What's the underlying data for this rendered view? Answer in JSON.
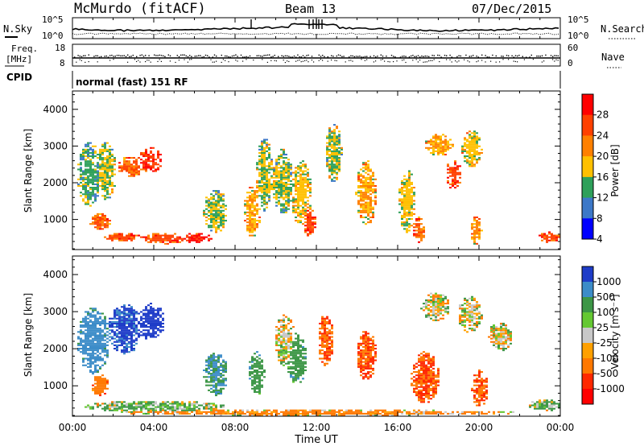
{
  "header": {
    "title": "McMurdo (fitACF)",
    "beam": "Beam 13",
    "date": "07/Dec/2015"
  },
  "noise_panel": {
    "left_label": "N.Sky",
    "right_label": "N.Search",
    "right_ticks": [
      "10^5",
      "10^0"
    ],
    "left_ticks": [
      "10^5",
      "10^0"
    ]
  },
  "freq_panel": {
    "left_label_line1": "Freq.",
    "left_label_line2": "[MHz]",
    "left_ticks": [
      "18",
      "8"
    ],
    "right_label": "Nave",
    "right_ticks": [
      "60",
      "0"
    ]
  },
  "cpid_panel": {
    "label": "CPID",
    "text": "normal (fast) 151 RF"
  },
  "power_panel": {
    "ylabel": "Slant Range [km]",
    "y_ticks": [
      "4000",
      "3000",
      "2000",
      "1000"
    ],
    "colorbar_label": "Power [dB]",
    "colorbar_ticks": [
      "28",
      "24",
      "20",
      "16",
      "12",
      "8",
      "4"
    ],
    "colors": [
      "#ff0000",
      "#ff4000",
      "#ff8000",
      "#ffc000",
      "#2ea05a",
      "#3c78c8",
      "#0000ff"
    ]
  },
  "velocity_panel": {
    "ylabel": "Slant Range [km]",
    "y_ticks": [
      "4000",
      "3000",
      "2000",
      "1000"
    ],
    "colorbar_label": "Velocity [m s⁻¹]",
    "colorbar_ticks": [
      "1000",
      "500",
      "100",
      "25",
      "-25",
      "-100",
      "-500",
      "-1000"
    ],
    "colors": [
      "#1e3cc8",
      "#3c8cc8",
      "#3c9646",
      "#64c832",
      "#c8c8c8",
      "#ffa000",
      "#ff7800",
      "#ff2800",
      "#ff0000"
    ]
  },
  "x_axis": {
    "ticks": [
      "00:00",
      "04:00",
      "08:00",
      "12:00",
      "16:00",
      "20:00",
      "00:00"
    ],
    "label": "Time UT"
  },
  "chart_data": [
    {
      "type": "heatmap",
      "name": "power",
      "x_range": [
        "00:00",
        "24:00"
      ],
      "ylim": [
        180,
        4500
      ],
      "y_ticks": [
        1000,
        2000,
        3000,
        4000
      ],
      "ylabel": "Slant Range [km]",
      "colorbar": {
        "label": "Power [dB]",
        "ticks": [
          4,
          8,
          12,
          16,
          20,
          24,
          28
        ]
      },
      "blobs": [
        {
          "t": 0.8,
          "r": 2200,
          "w": 0.6,
          "h": 900,
          "v": 12
        },
        {
          "t": 1.6,
          "r": 2300,
          "w": 0.5,
          "h": 800,
          "v": 14
        },
        {
          "t": 2.8,
          "r": 2400,
          "w": 0.6,
          "h": 300,
          "v": 22
        },
        {
          "t": 3.8,
          "r": 2600,
          "w": 0.6,
          "h": 350,
          "v": 26
        },
        {
          "t": 1.3,
          "r": 900,
          "w": 0.5,
          "h": 250,
          "v": 22
        },
        {
          "t": 2.4,
          "r": 500,
          "w": 0.9,
          "h": 120,
          "v": 24
        },
        {
          "t": 4.4,
          "r": 460,
          "w": 1.2,
          "h": 150,
          "v": 24
        },
        {
          "t": 6.0,
          "r": 480,
          "w": 0.9,
          "h": 130,
          "v": 26
        },
        {
          "t": 7.0,
          "r": 1200,
          "w": 0.6,
          "h": 600,
          "v": 14
        },
        {
          "t": 8.8,
          "r": 1200,
          "w": 0.4,
          "h": 700,
          "v": 18
        },
        {
          "t": 9.4,
          "r": 2200,
          "w": 0.4,
          "h": 1000,
          "v": 14
        },
        {
          "t": 10.3,
          "r": 2000,
          "w": 0.5,
          "h": 900,
          "v": 14
        },
        {
          "t": 11.2,
          "r": 1700,
          "w": 0.5,
          "h": 900,
          "v": 16
        },
        {
          "t": 11.6,
          "r": 900,
          "w": 0.3,
          "h": 400,
          "v": 24
        },
        {
          "t": 12.8,
          "r": 2800,
          "w": 0.4,
          "h": 800,
          "v": 14
        },
        {
          "t": 14.4,
          "r": 1700,
          "w": 0.5,
          "h": 900,
          "v": 18
        },
        {
          "t": 16.4,
          "r": 1500,
          "w": 0.4,
          "h": 900,
          "v": 16
        },
        {
          "t": 17.0,
          "r": 700,
          "w": 0.3,
          "h": 350,
          "v": 22
        },
        {
          "t": 18.0,
          "r": 3000,
          "w": 0.7,
          "h": 300,
          "v": 18
        },
        {
          "t": 18.7,
          "r": 2200,
          "w": 0.4,
          "h": 400,
          "v": 24
        },
        {
          "t": 19.6,
          "r": 2900,
          "w": 0.5,
          "h": 500,
          "v": 16
        },
        {
          "t": 19.8,
          "r": 700,
          "w": 0.3,
          "h": 400,
          "v": 20
        },
        {
          "t": 23.4,
          "r": 500,
          "w": 0.5,
          "h": 150,
          "v": 24
        }
      ]
    },
    {
      "type": "heatmap",
      "name": "velocity",
      "x_range": [
        "00:00",
        "24:00"
      ],
      "ylim": [
        180,
        4500
      ],
      "y_ticks": [
        1000,
        2000,
        3000,
        4000
      ],
      "ylabel": "Slant Range [km]",
      "colorbar": {
        "label": "Velocity [m s⁻¹]",
        "ticks": [
          -1000,
          -500,
          -100,
          -25,
          25,
          100,
          500,
          1000
        ]
      },
      "blobs": [
        {
          "t": 1.0,
          "r": 2200,
          "w": 0.8,
          "h": 900,
          "v": 400
        },
        {
          "t": 2.5,
          "r": 2500,
          "w": 0.8,
          "h": 700,
          "v": 800
        },
        {
          "t": 3.8,
          "r": 2700,
          "w": 0.7,
          "h": 500,
          "v": 1100
        },
        {
          "t": 1.3,
          "r": 1000,
          "w": 0.4,
          "h": 300,
          "v": -200
        },
        {
          "t": 4.0,
          "r": 420,
          "w": 3.5,
          "h": 150,
          "v": 60
        },
        {
          "t": 7.0,
          "r": 1300,
          "w": 0.6,
          "h": 600,
          "v": 300
        },
        {
          "t": 9.0,
          "r": 1300,
          "w": 0.4,
          "h": 600,
          "v": 200
        },
        {
          "t": 10.4,
          "r": 2200,
          "w": 0.5,
          "h": 700,
          "v": 0
        },
        {
          "t": 11.0,
          "r": 1700,
          "w": 0.5,
          "h": 700,
          "v": 200
        },
        {
          "t": 12.4,
          "r": 2200,
          "w": 0.4,
          "h": 700,
          "v": -300
        },
        {
          "t": 14.4,
          "r": 1800,
          "w": 0.5,
          "h": 700,
          "v": -300
        },
        {
          "t": 17.3,
          "r": 1200,
          "w": 0.7,
          "h": 700,
          "v": -300
        },
        {
          "t": 17.8,
          "r": 3100,
          "w": 0.7,
          "h": 400,
          "v": 0
        },
        {
          "t": 19.5,
          "r": 2900,
          "w": 0.6,
          "h": 500,
          "v": 0
        },
        {
          "t": 20.0,
          "r": 900,
          "w": 0.4,
          "h": 500,
          "v": -300
        },
        {
          "t": 21.0,
          "r": 2300,
          "w": 0.6,
          "h": 400,
          "v": 0
        },
        {
          "t": 12.0,
          "r": 250,
          "w": 10.0,
          "h": 80,
          "v": -100
        },
        {
          "t": 23.2,
          "r": 450,
          "w": 0.8,
          "h": 150,
          "v": 60
        }
      ]
    }
  ]
}
